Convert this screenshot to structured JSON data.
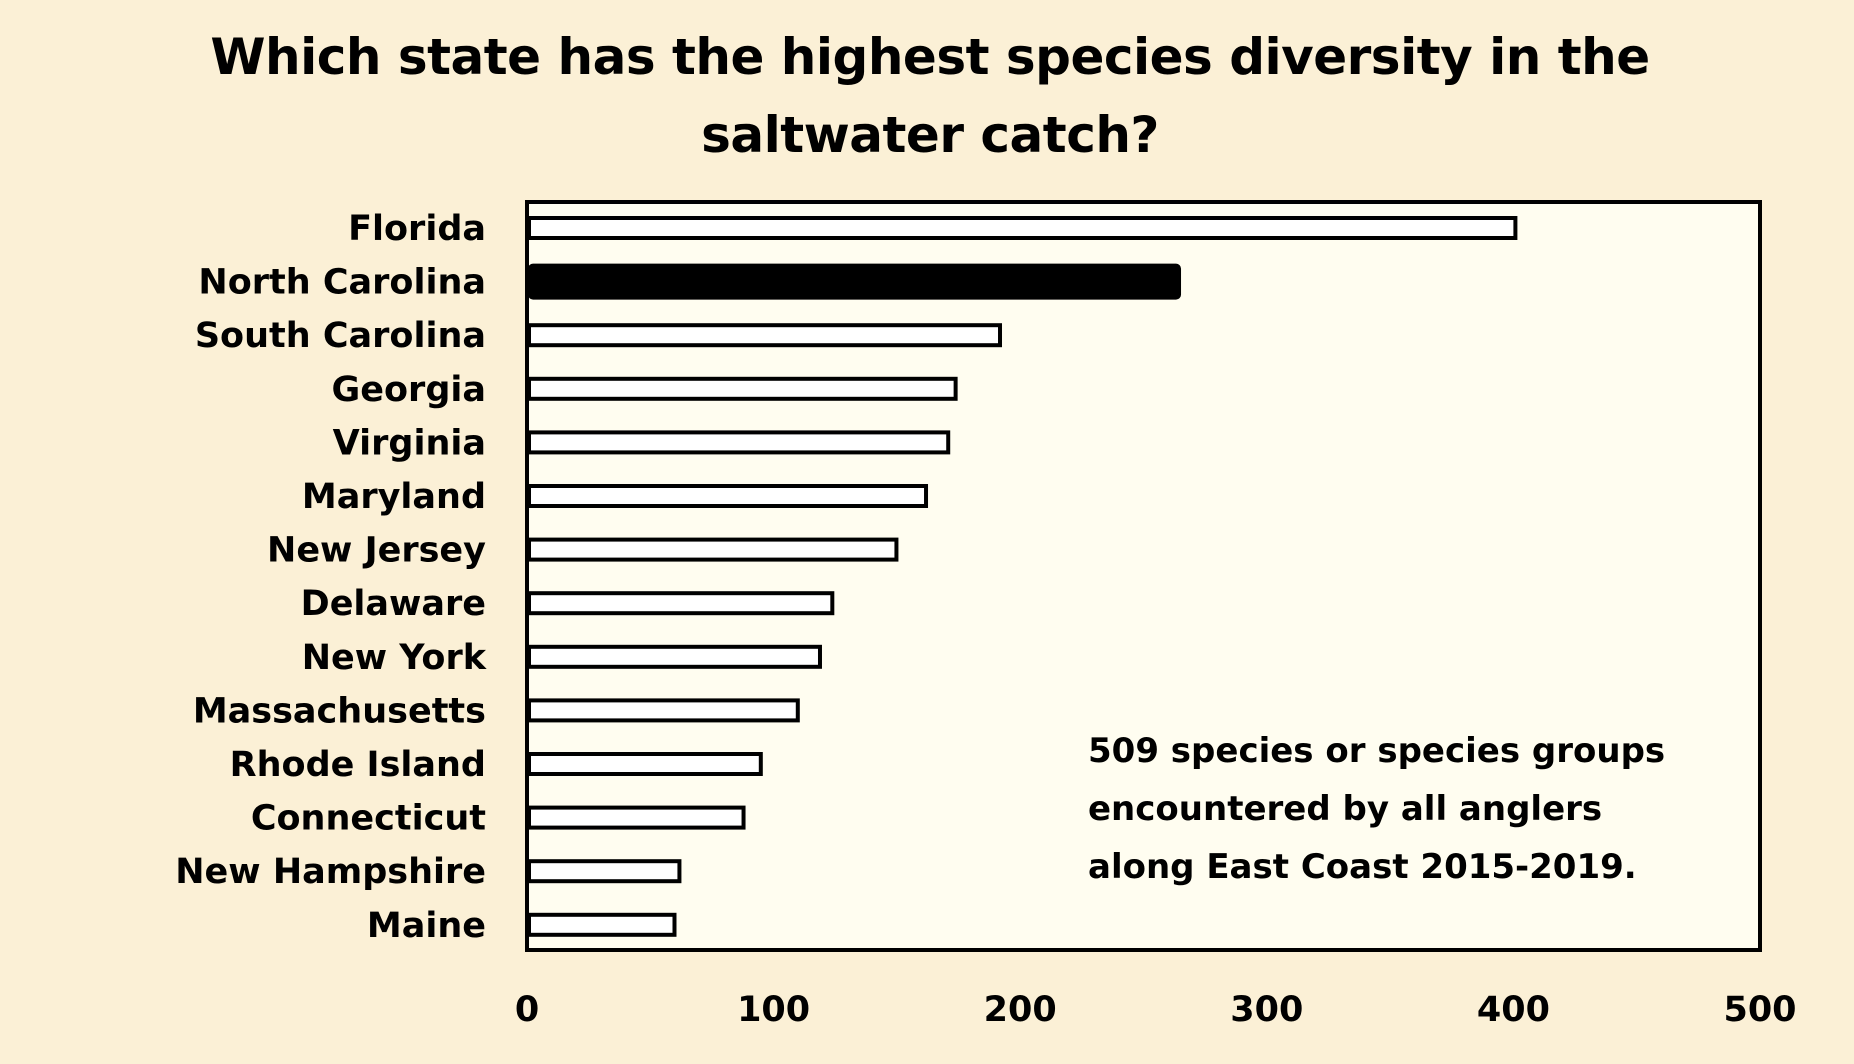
{
  "chart_data": {
    "type": "bar",
    "orientation": "horizontal",
    "title_lines": [
      "Which state has the highest species diversity in the",
      "saltwater catch?"
    ],
    "categories": [
      "Florida",
      "North Carolina",
      "South Carolina",
      "Georgia",
      "Virginia",
      "Maryland",
      "New Jersey",
      "Delaware",
      "New York",
      "Massachusetts",
      "Rhode Island",
      "Connecticut",
      "New Hampshire",
      "Maine"
    ],
    "values": [
      400,
      264,
      191,
      173,
      170,
      161,
      149,
      123,
      118,
      109,
      94,
      87,
      61,
      59
    ],
    "highlighted_category": "North Carolina",
    "xlim": [
      0,
      500
    ],
    "xticks": [
      "0",
      "100",
      "200",
      "300",
      "400",
      "500"
    ],
    "annotation_lines": [
      "509 species or species groups",
      "encountered by all anglers",
      "along East Coast 2015-2019."
    ],
    "grid": false,
    "colors": {
      "background": "#fbf0d6",
      "plot_area": "#fffdf0",
      "bar_fill": "#ffffff",
      "highlight_fill": "#000000",
      "stroke": "#000000"
    }
  }
}
